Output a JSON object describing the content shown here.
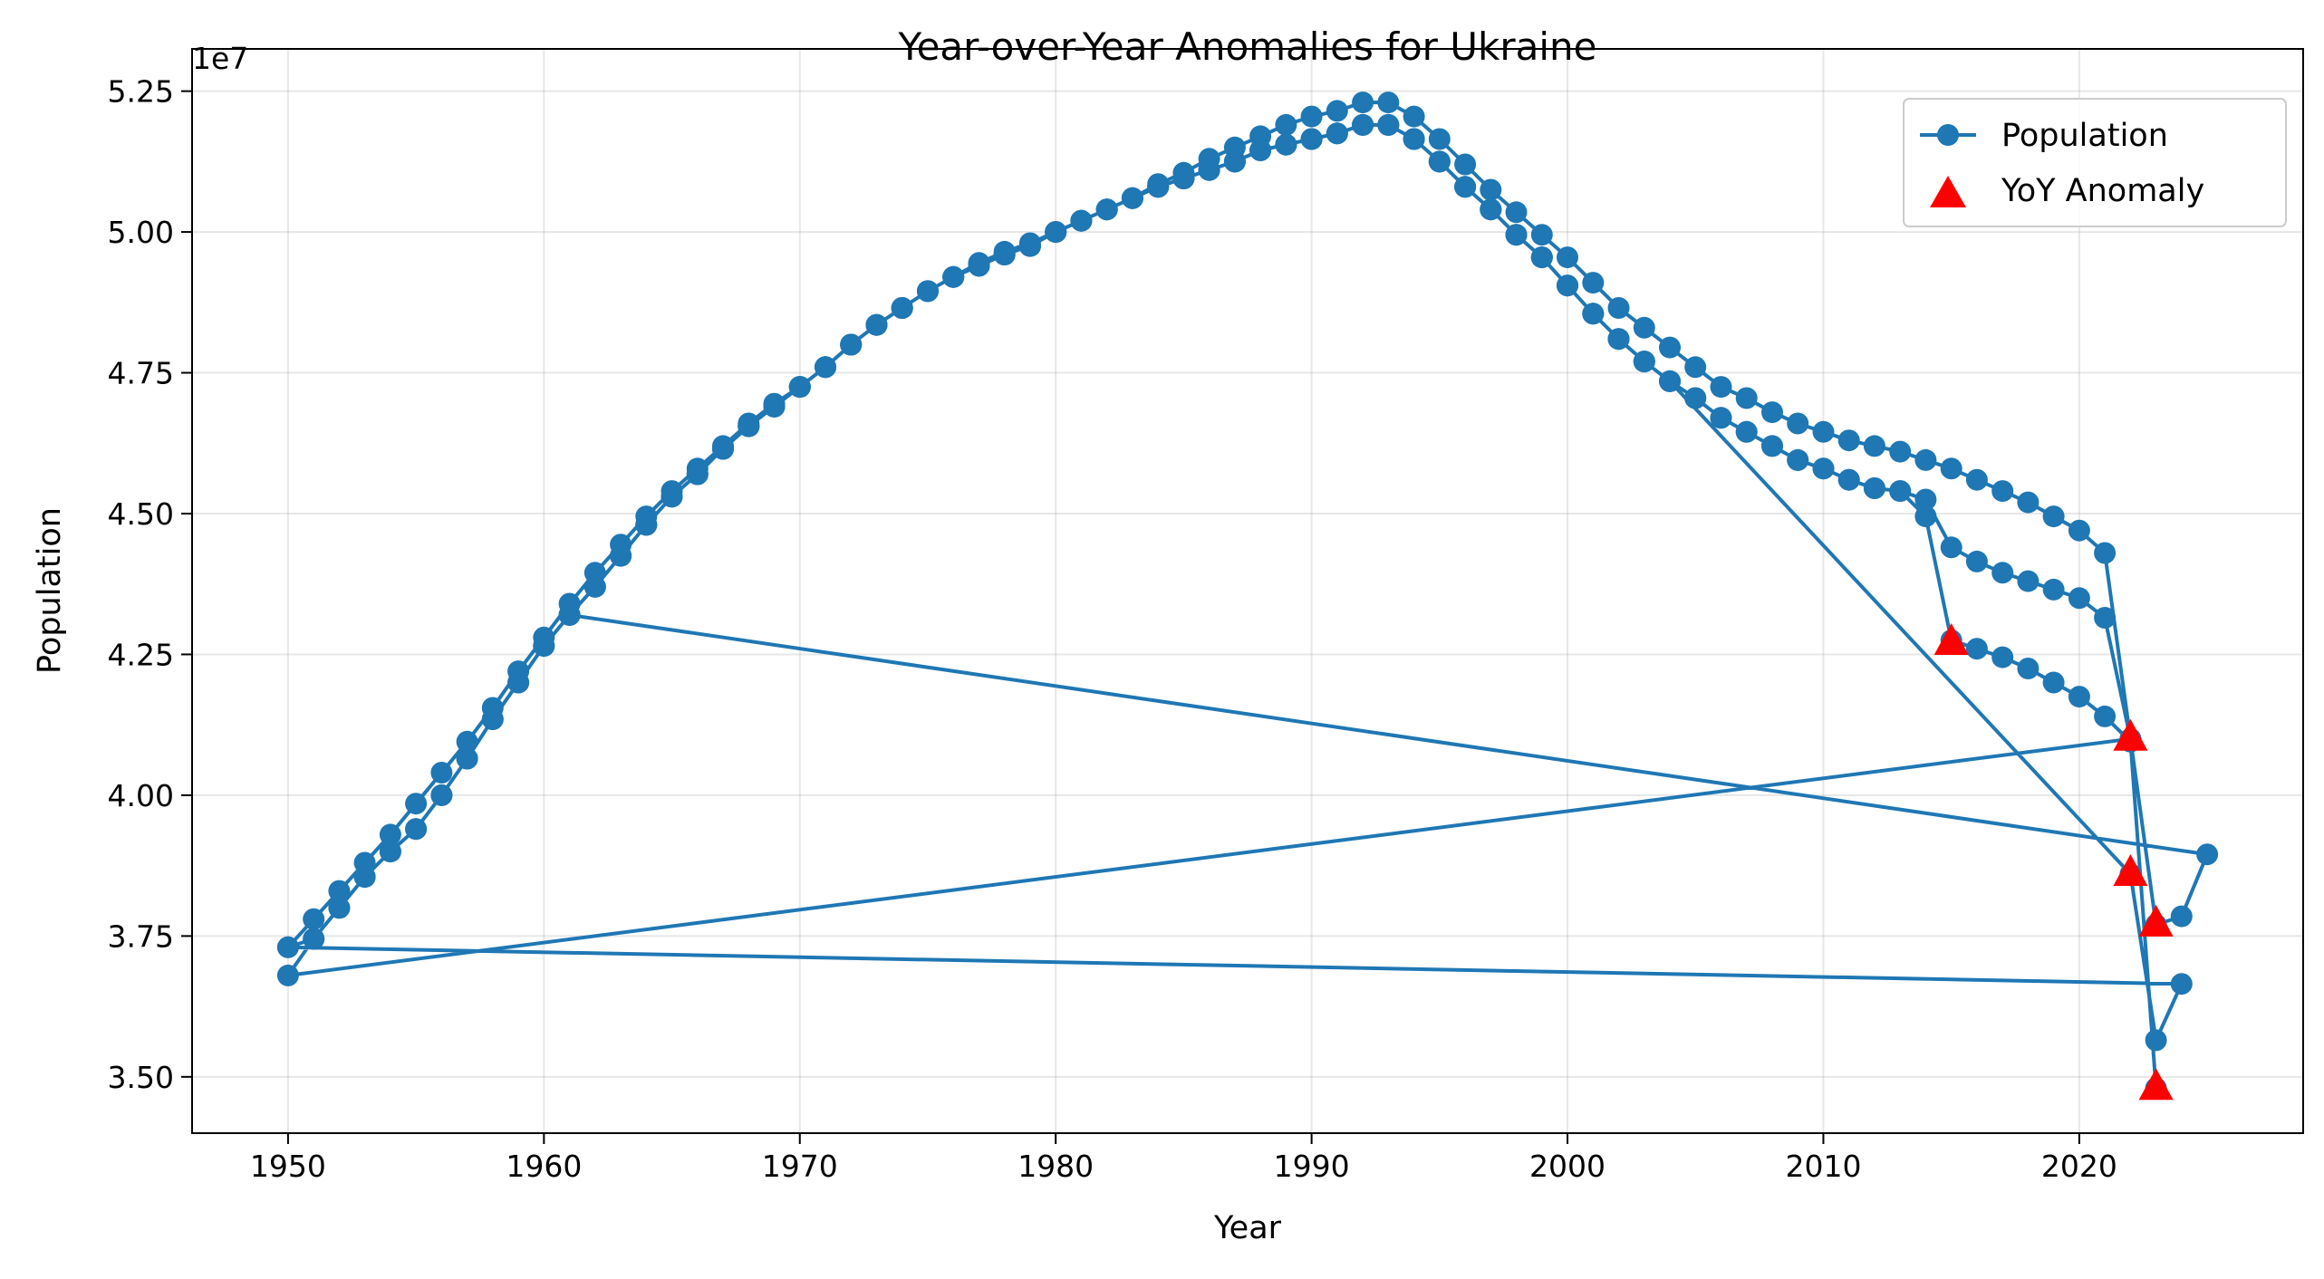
{
  "chart_data": {
    "type": "line",
    "title": "Year-over-Year Anomalies for Ukraine",
    "xlabel": "Year",
    "ylabel": "Population",
    "y_offset_label": "1e7",
    "xlim": [
      1946.25,
      2028.75
    ],
    "ylim": [
      34000000,
      53250000
    ],
    "x_ticks": [
      1950,
      1960,
      1970,
      1980,
      1990,
      2000,
      2010,
      2020
    ],
    "x_tick_labels": [
      "1950",
      "1960",
      "1970",
      "1980",
      "1990",
      "2000",
      "2010",
      "2020"
    ],
    "y_ticks": [
      35000000,
      37500000,
      40000000,
      42500000,
      45000000,
      47500000,
      50000000,
      52500000
    ],
    "y_tick_labels": [
      "3.50",
      "3.75",
      "4.00",
      "4.25",
      "4.50",
      "4.75",
      "5.00",
      "5.25"
    ],
    "grid": true,
    "legend_position": "top-right",
    "colors": {
      "series": "#1f77b4",
      "anomaly": "#ff0000"
    },
    "series": [
      {
        "name": "Population",
        "x": [
          1950,
          1951,
          1952,
          1953,
          1954,
          1955,
          1956,
          1957,
          1958,
          1959,
          1960,
          1961,
          1962,
          1963,
          1964,
          1965,
          1966,
          1967,
          1968,
          1969,
          1970,
          1971,
          1972,
          1973,
          1974,
          1975,
          1976,
          1977,
          1978,
          1979,
          1980,
          1981,
          1982,
          1983,
          1984,
          1985,
          1986,
          1987,
          1988,
          1989,
          1990,
          1991,
          1992,
          1993,
          1994,
          1995,
          1996,
          1997,
          1998,
          1999,
          2000,
          2001,
          2002,
          2003,
          2004,
          2005,
          2006,
          2007,
          2008,
          2009,
          2010,
          2011,
          2012,
          2013,
          2014,
          2015,
          2016,
          2017,
          2018,
          2019,
          2020,
          2021,
          2022,
          2023,
          2024,
          2025,
          1961,
          1962,
          1963,
          1964,
          1965,
          1966,
          1967,
          1968,
          1969,
          1970,
          1971,
          1972,
          1973,
          1974,
          1975,
          1976,
          1977,
          1978,
          1979,
          1980,
          1981,
          1982,
          1983,
          1984,
          1985,
          1986,
          1987,
          1988,
          1989,
          1990,
          1991,
          1992,
          1993,
          1994,
          1995,
          1996,
          1997,
          1998,
          1999,
          2000,
          2001,
          2002,
          2003,
          2004,
          2022,
          2023,
          2024,
          1950,
          1951,
          1952,
          1953,
          1954,
          1955,
          1956,
          1957,
          1958,
          1959,
          1960,
          1961,
          1962,
          1963,
          1964,
          1965,
          1966,
          1967,
          1968,
          1969,
          1970,
          1971,
          1972,
          1973,
          1974,
          1975,
          1976,
          1977,
          1978,
          1979,
          1980,
          1981,
          1982,
          1983,
          1984,
          1985,
          1986,
          1987,
          1988,
          1989,
          1990,
          1991,
          1992,
          1993,
          1994,
          1995,
          1996,
          1997,
          1998,
          1999,
          2000,
          2001,
          2002,
          2003,
          2004,
          2005,
          2006,
          2007,
          2008,
          2009,
          2010,
          2011,
          2012,
          2013,
          2014,
          2015,
          2016,
          2017,
          2018,
          2019,
          2020,
          2021,
          2022,
          1950,
          1951,
          1952,
          1953,
          1954,
          1955,
          1956,
          1957,
          1958,
          1959,
          1960,
          1961,
          1962,
          1963,
          1964,
          1965,
          1966,
          1967,
          1968,
          1969,
          1970,
          1971,
          1972,
          1973,
          1974,
          1975,
          1976,
          1977,
          1978,
          1979,
          1980,
          1981,
          1982,
          1983,
          1984,
          1985,
          1986,
          1987,
          1988,
          1989,
          1990,
          1991,
          1992,
          1993,
          1994,
          1995,
          1996,
          1997,
          1998,
          1999,
          2000,
          2001,
          2002,
          2003,
          2004,
          2005,
          2006,
          2007,
          2008,
          2009,
          2010,
          2011,
          2012,
          2013,
          2014,
          2015,
          2016,
          2017,
          2018,
          2019,
          2020,
          2021,
          2022,
          2023
        ],
        "y": [
          37300000,
          37800000,
          38300000,
          38800000,
          39300000,
          39850000,
          40400000,
          40950000,
          41550000,
          42200000,
          42800000,
          43400000,
          43950000,
          44450000,
          44950000,
          45400000,
          45800000,
          46200000,
          46600000,
          46950000,
          47250000,
          47600000,
          48000000,
          48350000,
          48650000,
          48950000,
          49200000,
          49450000,
          49650000,
          49800000,
          50000000,
          50200000,
          50400000,
          50600000,
          50850000,
          51050000,
          51300000,
          51500000,
          51700000,
          51900000,
          52050000,
          52150000,
          52300000,
          52300000,
          52050000,
          51650000,
          51200000,
          50750000,
          50350000,
          49950000,
          49550000,
          49100000,
          48650000,
          48300000,
          47950000,
          47600000,
          47250000,
          47050000,
          46800000,
          46600000,
          46450000,
          46300000,
          46200000,
          46100000,
          45950000,
          45800000,
          45600000,
          45400000,
          45200000,
          44950000,
          44700000,
          44300000,
          41000000,
          37700000,
          37850000,
          38950000,
          43200000,
          43700000,
          44250000,
          44800000,
          45300000,
          45700000,
          46150000,
          46550000,
          46900000,
          47250000,
          47600000,
          48000000,
          48350000,
          48650000,
          48950000,
          49200000,
          49400000,
          49600000,
          49750000,
          50000000,
          50200000,
          50400000,
          50600000,
          50800000,
          50950000,
          51100000,
          51250000,
          51450000,
          51550000,
          51650000,
          51750000,
          51900000,
          51900000,
          51650000,
          51250000,
          50800000,
          50400000,
          49950000,
          49550000,
          49050000,
          48550000,
          48100000,
          47700000,
          47350000,
          38600000,
          35650000,
          36650000,
          37300000,
          37450000,
          38000000,
          38550000,
          39000000,
          39400000,
          40000000,
          40650000,
          41350000,
          42000000,
          42650000,
          43200000,
          43700000,
          44250000,
          44800000,
          45300000,
          45700000,
          46150000,
          46550000,
          46900000,
          47250000,
          47600000,
          48000000,
          48350000,
          48650000,
          48950000,
          49200000,
          49400000,
          49600000,
          49750000,
          50000000,
          50200000,
          50400000,
          50600000,
          50800000,
          50950000,
          51100000,
          51250000,
          51450000,
          51550000,
          51650000,
          51750000,
          51900000,
          51900000,
          51650000,
          51250000,
          50800000,
          50400000,
          49950000,
          49550000,
          49050000,
          48550000,
          48100000,
          47700000,
          47350000,
          47050000,
          46700000,
          46450000,
          46200000,
          45950000,
          45800000,
          45600000,
          45450000,
          45400000,
          45250000,
          44400000,
          44150000,
          43950000,
          43800000,
          43650000,
          43500000,
          43150000,
          41000000,
          36800000,
          37450000,
          38000000,
          38550000,
          39000000,
          39400000,
          40000000,
          40650000,
          41350000,
          42000000,
          42650000,
          43200000,
          43700000,
          44250000,
          44800000,
          45300000,
          45700000,
          46150000,
          46550000,
          46900000,
          47250000,
          47600000,
          48000000,
          48350000,
          48650000,
          48950000,
          49200000,
          49400000,
          49600000,
          49750000,
          50000000,
          50200000,
          50400000,
          50600000,
          50800000,
          50950000,
          51100000,
          51250000,
          51450000,
          51550000,
          51650000,
          51750000,
          51900000,
          51900000,
          51650000,
          51250000,
          50800000,
          50400000,
          49950000,
          49550000,
          49050000,
          48550000,
          48100000,
          47700000,
          47350000,
          47050000,
          46700000,
          46450000,
          46200000,
          45950000,
          45800000,
          45600000,
          45450000,
          45400000,
          44950000,
          42750000,
          42600000,
          42450000,
          42250000,
          42000000,
          41750000,
          41400000,
          40950000,
          34800000
        ]
      },
      {
        "name": "YoY Anomaly",
        "x": [
          2015,
          2022,
          2022,
          2023,
          2023
        ],
        "y": [
          42700000,
          41000000,
          38600000,
          37700000,
          34800000
        ]
      }
    ]
  }
}
